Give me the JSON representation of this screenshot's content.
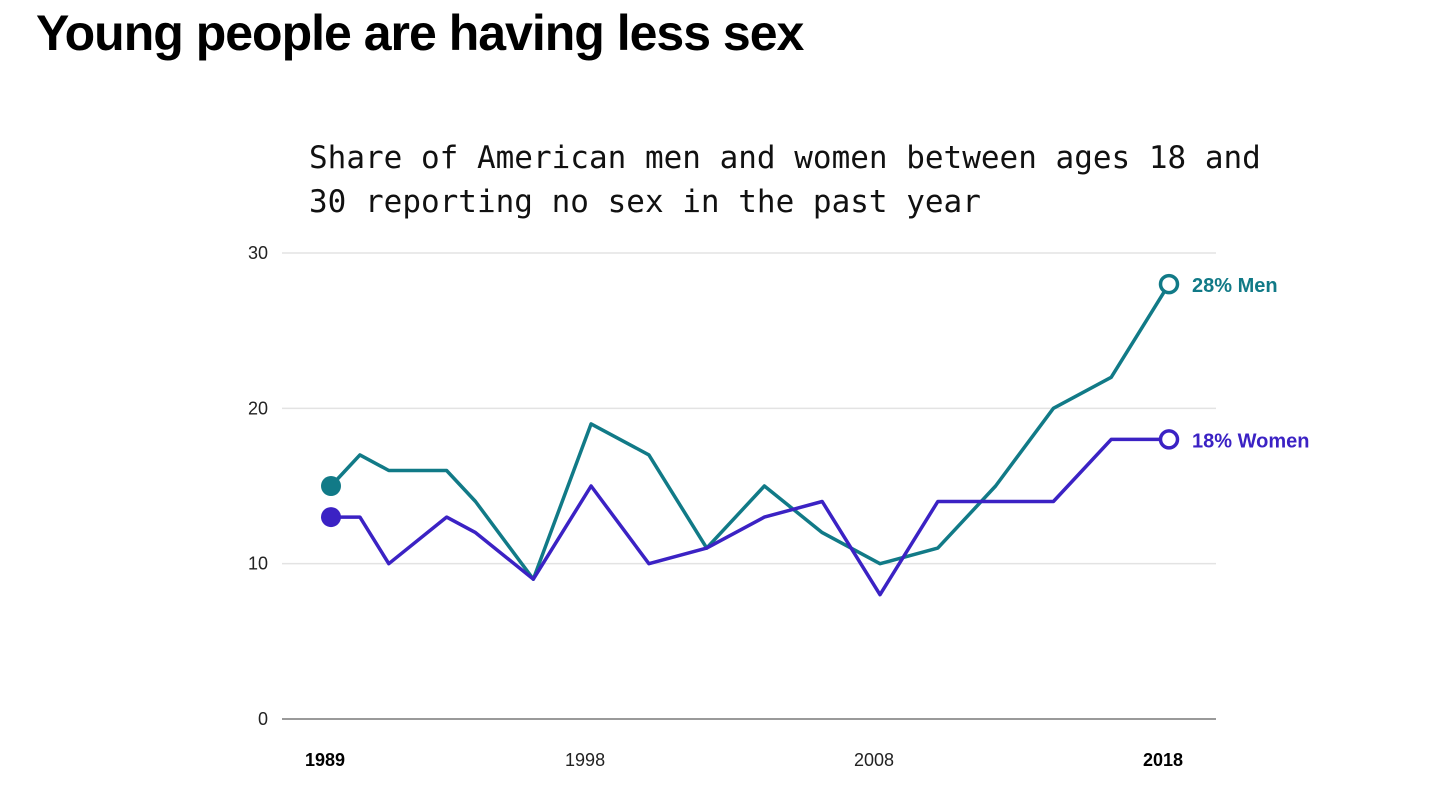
{
  "headline": "Young people are having less sex",
  "chart_data": {
    "type": "line",
    "title": "Share of American men and women between ages 18 and 30 reporting no sex in the past year",
    "xlabel": "",
    "ylabel": "",
    "ylim": [
      0,
      30
    ],
    "yticks": [
      0,
      10,
      20,
      30
    ],
    "xticks": [
      {
        "value": 1989,
        "label": "1989",
        "bold": true
      },
      {
        "value": 1998,
        "label": "1998",
        "bold": false
      },
      {
        "value": 2008,
        "label": "2008",
        "bold": false
      },
      {
        "value": 2018,
        "label": "2018",
        "bold": true
      }
    ],
    "xlim": [
      1989,
      2018
    ],
    "grid": true,
    "x": [
      1989,
      1990,
      1991,
      1993,
      1994,
      1996,
      1998,
      2000,
      2002,
      2004,
      2006,
      2008,
      2010,
      2012,
      2014,
      2016,
      2018
    ],
    "series": [
      {
        "name": "Men",
        "end_label": "28%  Men",
        "color": "#117a87",
        "values": [
          15,
          17,
          16,
          16,
          14,
          9,
          19,
          17,
          11,
          15,
          12,
          10,
          11,
          15,
          20,
          22,
          28
        ]
      },
      {
        "name": "Women",
        "end_label": "18% Women",
        "color": "#3b22c4",
        "values": [
          13,
          13,
          10,
          13,
          12,
          9,
          15,
          10,
          11,
          13,
          14,
          8,
          14,
          14,
          14,
          18,
          18
        ]
      }
    ]
  }
}
